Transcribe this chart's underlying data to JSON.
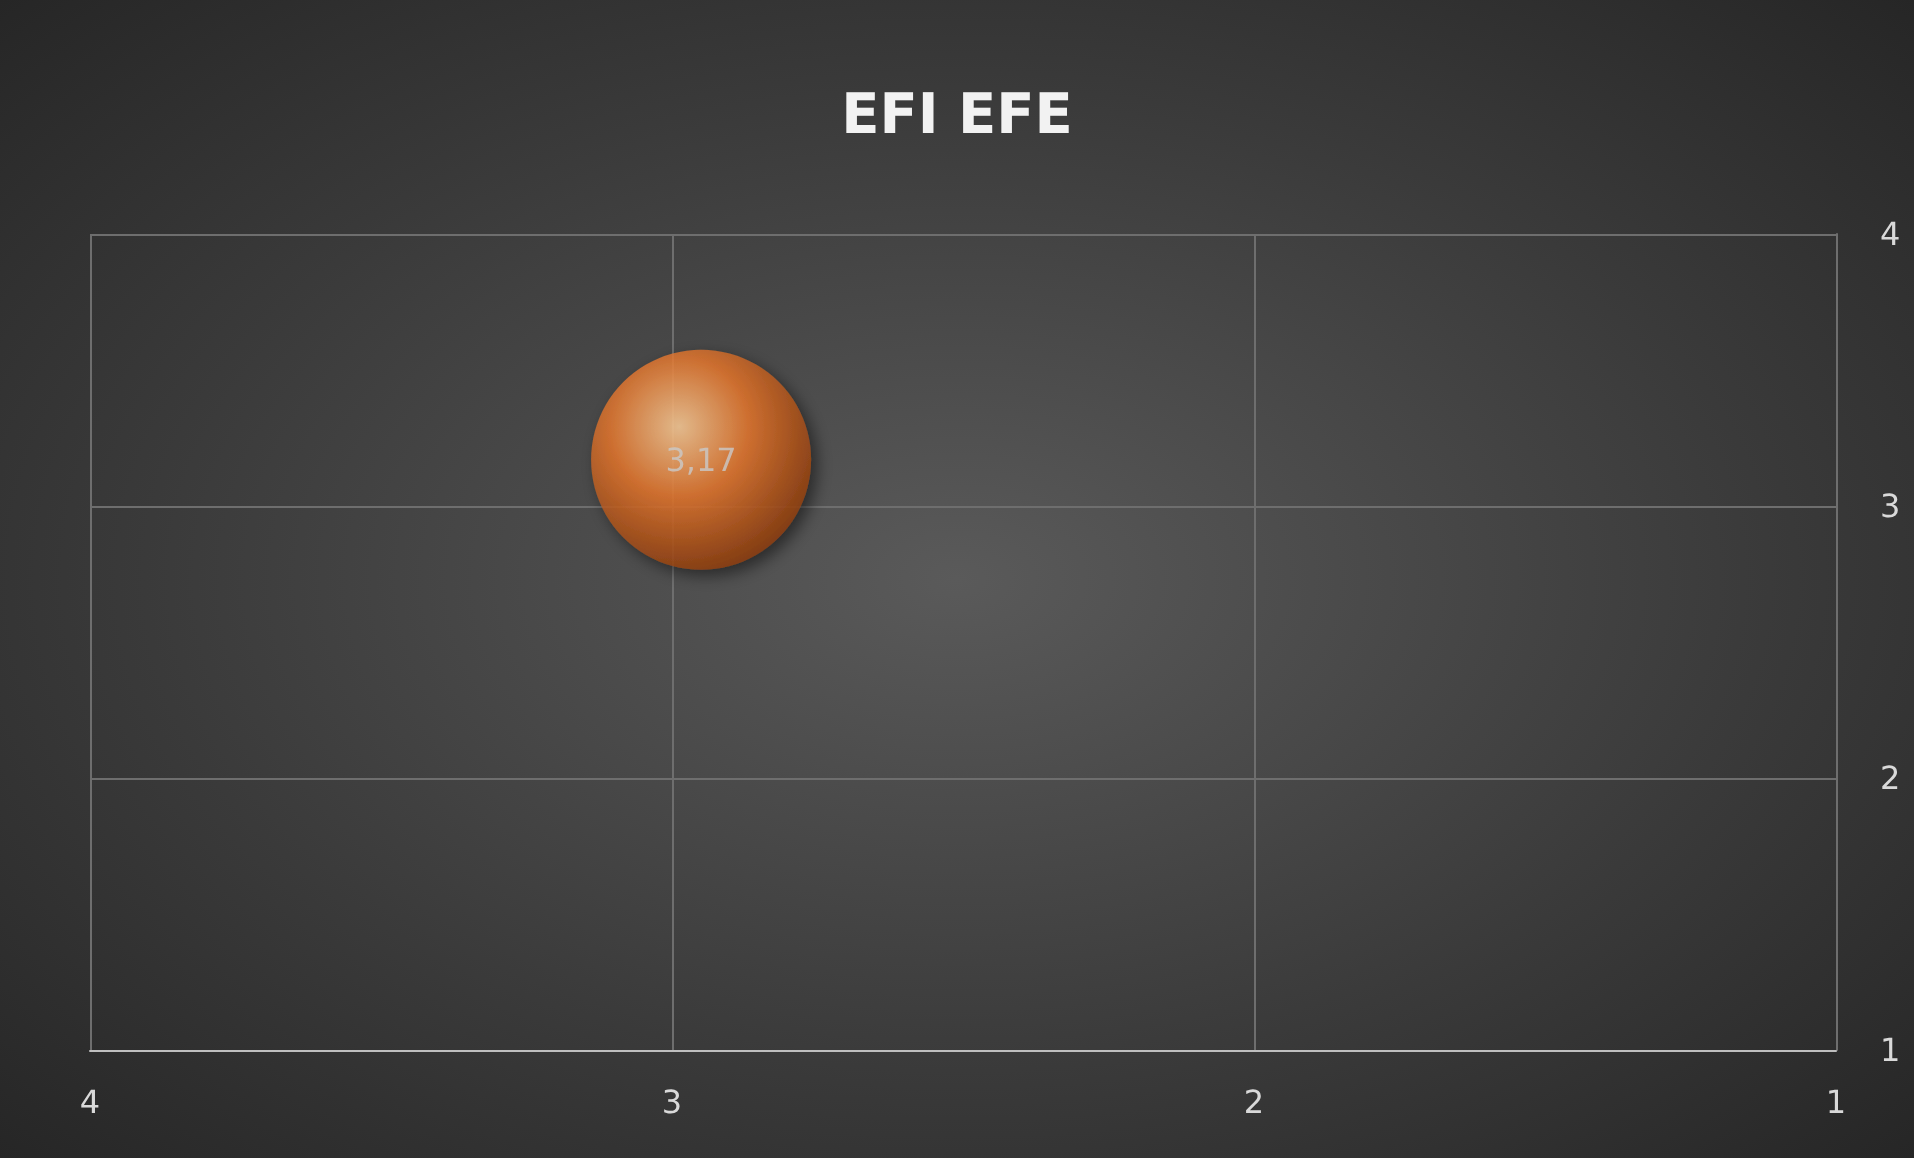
{
  "chart_data": {
    "type": "bubble",
    "title": "EFI EFE",
    "x": [
      2.95
    ],
    "values": [
      3.17
    ],
    "sizes": [
      1
    ],
    "value_labels": [
      "3,17"
    ],
    "color": "#e8792f",
    "xlim": [
      4,
      1
    ],
    "xticks": [
      4,
      3,
      2,
      1
    ],
    "ylim": [
      1,
      4
    ],
    "yticks": [
      1,
      2,
      3,
      4
    ],
    "grid": true
  }
}
